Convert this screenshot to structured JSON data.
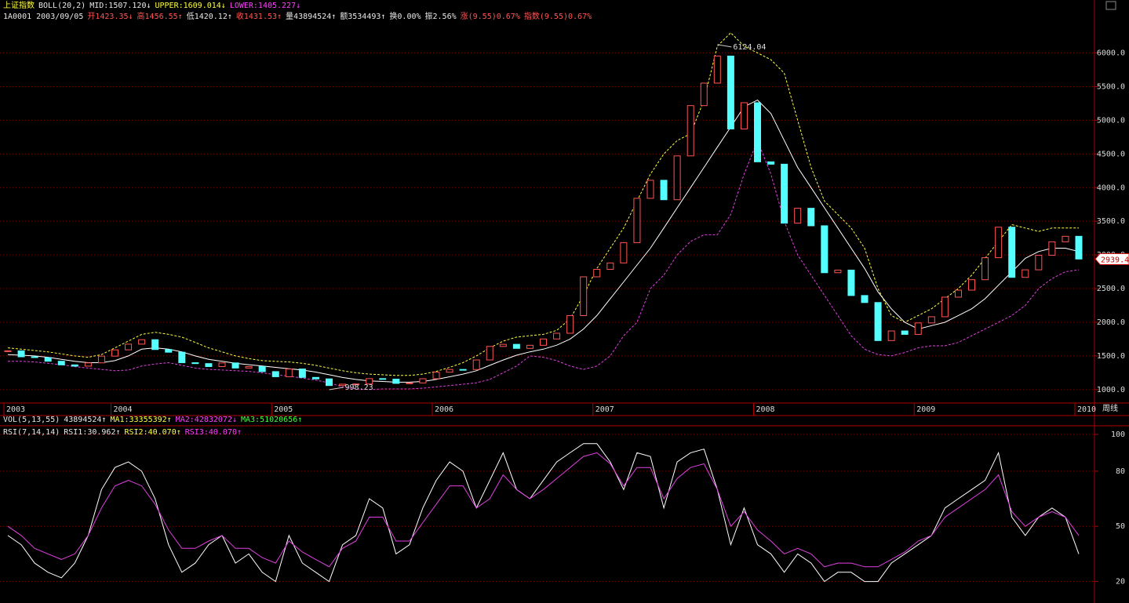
{
  "header": {
    "line1": [
      "上证指数",
      "BOLL(20,2)",
      "MID:1507.120↓",
      "UPPER:1609.014↓",
      "LOWER:1405.227↓"
    ],
    "line2": [
      "1A0001 2003/09/05",
      "开1423.35↓",
      "高1456.55↑",
      "低1420.12↑",
      "收1431.53↑",
      "量43894524↑",
      "额3534493↑",
      "换0.00%",
      "振2.56%",
      "涨(9.55)0.67%",
      "指数(9.55)0.67%"
    ],
    "vol_line": [
      "VOL(5,13,55)",
      "43894524↑",
      "MA1:33355392↑",
      "MA2:42832072↓",
      "MA3:51020656↑"
    ],
    "rsi_line": [
      "RSI(7,14,14)",
      "RSI1:30.962↑",
      "RSI2:40.070↑",
      "RSI3:40.070↑"
    ],
    "period": "周线"
  },
  "chart_data": [
    {
      "type": "candlestick",
      "up_color": "#ff5454",
      "down_color": "#54ffff",
      "categories": [
        "2003",
        null,
        null,
        null,
        null,
        null,
        null,
        null,
        "2004",
        null,
        null,
        null,
        null,
        null,
        null,
        null,
        null,
        null,
        null,
        null,
        "2005",
        null,
        null,
        null,
        null,
        null,
        null,
        null,
        null,
        null,
        null,
        null,
        "2006",
        null,
        null,
        null,
        null,
        null,
        null,
        null,
        null,
        null,
        null,
        null,
        "2007",
        null,
        null,
        null,
        null,
        null,
        null,
        null,
        null,
        null,
        null,
        null,
        "2008",
        null,
        null,
        null,
        null,
        null,
        null,
        null,
        null,
        null,
        null,
        null,
        "2009",
        null,
        null,
        null,
        null,
        null,
        null,
        null,
        null,
        null,
        null,
        null,
        "2010"
      ],
      "close": [
        1576,
        1487,
        1476,
        1421,
        1367,
        1348,
        1397,
        1497,
        1590,
        1675,
        1741,
        1595,
        1555,
        1399,
        1386,
        1342,
        1396,
        1320,
        1341,
        1267,
        1191,
        1306,
        1181,
        1159,
        1060,
        1080,
        1083,
        1163,
        1155,
        1092,
        1099,
        1161,
        1258,
        1299,
        1298,
        1440,
        1641,
        1672,
        1612,
        1658,
        1752,
        1837,
        2099,
        2675,
        2786,
        2881,
        3183,
        3841,
        4109,
        3820,
        4471,
        5218,
        5552,
        5954,
        4871,
        5261,
        4383,
        4348,
        3472,
        3693,
        3433,
        2736,
        2775,
        2397,
        2293,
        1728,
        1871,
        1820,
        1990,
        2082,
        2373,
        2477,
        2632,
        2959,
        3412,
        2667,
        2779,
        2995,
        3195,
        3277,
        2939.4
      ],
      "bands": {
        "mid": {
          "color": "#ffffff",
          "values": [
            1520,
            1510,
            1500,
            1480,
            1450,
            1420,
            1400,
            1400,
            1430,
            1500,
            1600,
            1620,
            1600,
            1560,
            1500,
            1450,
            1420,
            1390,
            1370,
            1350,
            1330,
            1310,
            1290,
            1260,
            1220,
            1180,
            1150,
            1130,
            1120,
            1110,
            1110,
            1120,
            1150,
            1190,
            1230,
            1280,
            1360,
            1440,
            1510,
            1560,
            1600,
            1660,
            1750,
            1900,
            2100,
            2350,
            2600,
            2850,
            3100,
            3400,
            3700,
            4000,
            4300,
            4600,
            4900,
            5200,
            5300,
            5100,
            4700,
            4300,
            4000,
            3700,
            3400,
            3100,
            2800,
            2450,
            2200,
            2000,
            1900,
            1950,
            2000,
            2100,
            2200,
            2350,
            2550,
            2750,
            2950,
            3050,
            3100,
            3100,
            3050
          ]
        },
        "upper": {
          "color": "#ffff40",
          "values": [
            1620,
            1600,
            1580,
            1560,
            1530,
            1500,
            1480,
            1520,
            1620,
            1720,
            1820,
            1850,
            1820,
            1780,
            1700,
            1620,
            1560,
            1500,
            1460,
            1430,
            1420,
            1410,
            1390,
            1360,
            1320,
            1280,
            1250,
            1230,
            1220,
            1210,
            1210,
            1230,
            1270,
            1330,
            1400,
            1500,
            1620,
            1720,
            1780,
            1800,
            1820,
            1880,
            2050,
            2400,
            2800,
            3100,
            3400,
            3800,
            4200,
            4500,
            4700,
            4800,
            5300,
            6100,
            6300,
            6100,
            6000,
            5900,
            5700,
            5000,
            4300,
            3800,
            3600,
            3400,
            3100,
            2500,
            2100,
            2000,
            2100,
            2200,
            2350,
            2500,
            2700,
            2950,
            3200,
            3450,
            3400,
            3350,
            3400,
            3400,
            3400
          ]
        },
        "lower": {
          "color": "#e040e0",
          "values": [
            1420,
            1420,
            1410,
            1390,
            1370,
            1340,
            1320,
            1300,
            1280,
            1290,
            1350,
            1380,
            1400,
            1360,
            1320,
            1300,
            1290,
            1280,
            1270,
            1250,
            1220,
            1200,
            1170,
            1140,
            1100,
            1040,
            1010,
            1000,
            1010,
            1010,
            1010,
            1020,
            1040,
            1060,
            1080,
            1100,
            1150,
            1250,
            1350,
            1500,
            1480,
            1430,
            1350,
            1300,
            1350,
            1500,
            1800,
            2000,
            2500,
            2700,
            3000,
            3200,
            3300,
            3300,
            3600,
            4200,
            4700,
            4200,
            3500,
            3000,
            2700,
            2400,
            2100,
            1800,
            1600,
            1520,
            1500,
            1550,
            1620,
            1650,
            1650,
            1700,
            1800,
            1900,
            2000,
            2100,
            2250,
            2500,
            2650,
            2750,
            2780
          ]
        }
      },
      "annotations": [
        {
          "value": 6124.04
        },
        {
          "value": 998.23
        }
      ],
      "last_price": 2939.4,
      "ylim": [
        800,
        6740
      ],
      "yticks": [
        {
          "value": 1000,
          "label": "1000.0"
        },
        {
          "value": 1500,
          "label": "1500.0"
        },
        {
          "value": 2000,
          "label": "2000.0"
        },
        {
          "value": 2500,
          "label": "2500.0"
        },
        {
          "value": 3000,
          "label": "3000.0"
        },
        {
          "value": 3500,
          "label": "3500.0"
        },
        {
          "value": 4000,
          "label": "4000.0"
        },
        {
          "value": 4500,
          "label": "4500.0"
        },
        {
          "value": 5000,
          "label": "5000.0"
        },
        {
          "value": 5500,
          "label": "5500.0"
        },
        {
          "value": 6000,
          "label": "6000.0"
        }
      ],
      "grid": true
    },
    {
      "type": "line",
      "series": [
        {
          "color": "#ffffff",
          "values": [
            45,
            40,
            30,
            25,
            22,
            30,
            45,
            70,
            82,
            85,
            80,
            65,
            40,
            25,
            30,
            40,
            45,
            30,
            35,
            25,
            20,
            45,
            30,
            25,
            20,
            40,
            45,
            65,
            60,
            35,
            40,
            60,
            75,
            85,
            80,
            60,
            75,
            90,
            70,
            65,
            75,
            85,
            90,
            95,
            95,
            85,
            70,
            90,
            88,
            60,
            85,
            90,
            92,
            70,
            40,
            60,
            40,
            35,
            25,
            35,
            30,
            20,
            25,
            25,
            20,
            20,
            30,
            35,
            40,
            45,
            60,
            65,
            70,
            75,
            90,
            55,
            45,
            55,
            60,
            55,
            35
          ]
        },
        {
          "color": "#e040e0",
          "values": [
            50,
            45,
            38,
            35,
            32,
            35,
            45,
            60,
            72,
            75,
            72,
            62,
            48,
            38,
            38,
            42,
            45,
            38,
            38,
            33,
            30,
            42,
            36,
            32,
            28,
            38,
            42,
            55,
            55,
            42,
            42,
            52,
            62,
            72,
            72,
            60,
            65,
            78,
            70,
            65,
            70,
            76,
            82,
            88,
            90,
            84,
            72,
            82,
            82,
            65,
            76,
            82,
            84,
            70,
            50,
            58,
            48,
            42,
            35,
            38,
            35,
            28,
            30,
            30,
            28,
            28,
            32,
            36,
            42,
            45,
            55,
            60,
            65,
            70,
            78,
            58,
            50,
            55,
            58,
            55,
            45
          ]
        }
      ],
      "ylim": [
        10,
        103.4
      ],
      "yticks": [
        20,
        50,
        80,
        100
      ],
      "grid": true
    }
  ]
}
